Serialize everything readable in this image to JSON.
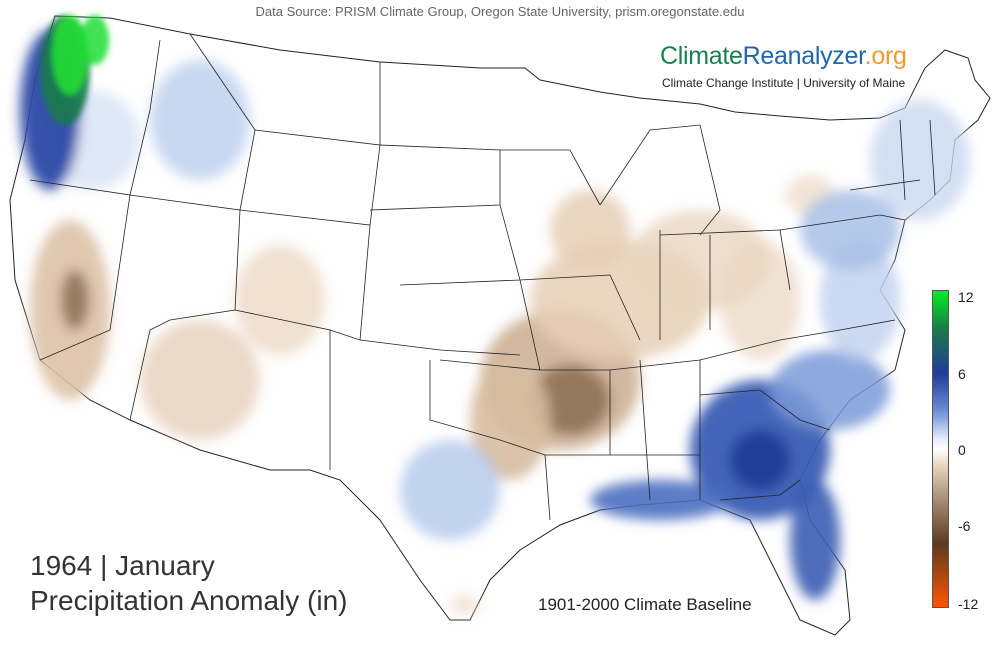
{
  "header": {
    "data_source": "Data Source: PRISM Climate Group, Oregon State University, prism.oregonstate.edu"
  },
  "brand": {
    "part1": "Climate",
    "part2": "Reanalyzer",
    "part3": ".org",
    "subtitle": "Climate Change Institute | University of Maine",
    "colors": {
      "part1": "#1a7f4e",
      "part2": "#2067a8",
      "part3": "#f29a2e"
    }
  },
  "title": {
    "line1": "1964 | January",
    "line2": "Precipitation Anomaly (in)"
  },
  "baseline": "1901-2000 Climate Baseline",
  "colorbar": {
    "ticks": [
      "12",
      "6",
      "0",
      "-6",
      "-12"
    ],
    "colors": [
      "#00ee22",
      "#1b7a4a",
      "#1f3c98",
      "#6c8fd6",
      "#e8eef8",
      "#ffffff",
      "#e8d7c2",
      "#9c8068",
      "#5c3a1e",
      "#ff5500"
    ]
  }
}
